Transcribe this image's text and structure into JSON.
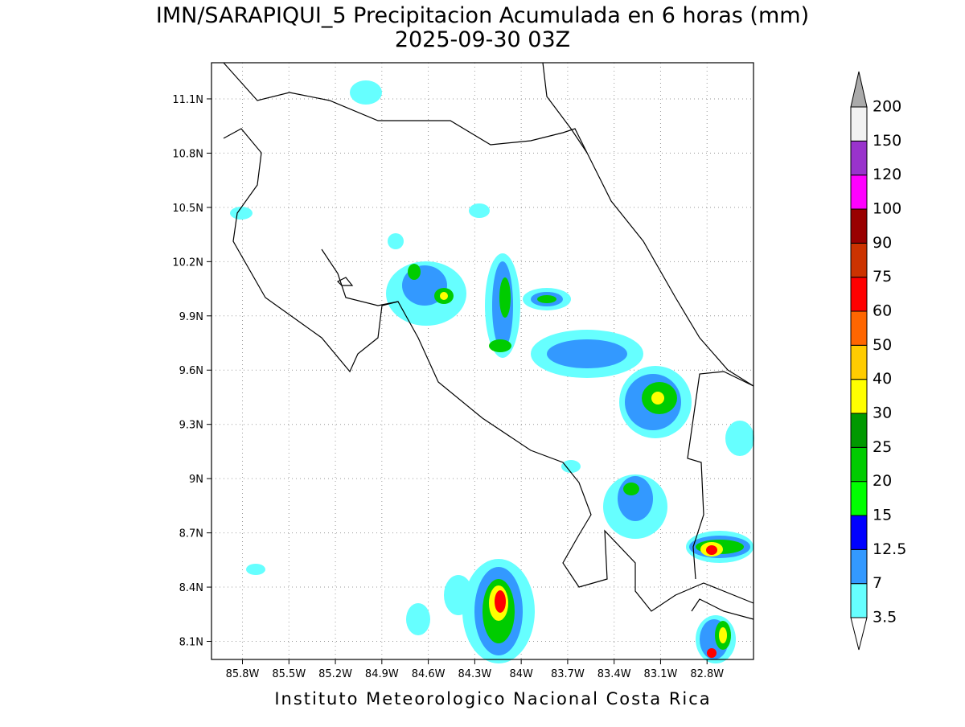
{
  "title": "IMN/SARAPIQUI_5 Precipitacion Acumulada en 6 horas (mm)",
  "subtitle": "2025-09-30 03Z",
  "map": {
    "xlim": [
      -86.0,
      -82.5
    ],
    "ylim": [
      8.0,
      11.3
    ],
    "grid": true,
    "xticks": [
      {
        "value": -85.8,
        "label": "85.8W"
      },
      {
        "value": -85.5,
        "label": "85.5W"
      },
      {
        "value": -85.2,
        "label": "85.2W"
      },
      {
        "value": -84.9,
        "label": "84.9W"
      },
      {
        "value": -84.6,
        "label": "84.6W"
      },
      {
        "value": -84.3,
        "label": "84.3W"
      },
      {
        "value": -84.0,
        "label": "84W"
      },
      {
        "value": -83.7,
        "label": "83.7W"
      },
      {
        "value": -83.4,
        "label": "83.4W"
      },
      {
        "value": -83.1,
        "label": "83.1W"
      },
      {
        "value": -82.8,
        "label": "82.8W"
      }
    ],
    "yticks": [
      {
        "value": 8.1,
        "label": "8.1N"
      },
      {
        "value": 8.4,
        "label": "8.4N"
      },
      {
        "value": 8.7,
        "label": "8.7N"
      },
      {
        "value": 9.0,
        "label": "9N"
      },
      {
        "value": 9.3,
        "label": "9.3N"
      },
      {
        "value": 9.6,
        "label": "9.6N"
      },
      {
        "value": 9.9,
        "label": "9.9N"
      },
      {
        "value": 10.2,
        "label": "10.2N"
      },
      {
        "value": 10.5,
        "label": "10.5N"
      },
      {
        "value": 10.8,
        "label": "10.8N"
      },
      {
        "value": 11.1,
        "label": "11.1N"
      }
    ]
  },
  "colorbar": {
    "levels": [
      3.5,
      7,
      12.5,
      15,
      20,
      25,
      30,
      40,
      50,
      60,
      75,
      90,
      100,
      120,
      150,
      200
    ],
    "colors": [
      "#ffffff",
      "#66ffff",
      "#3399ff",
      "#0000ff",
      "#00ff00",
      "#00cc00",
      "#009900",
      "#ffff00",
      "#ffcc00",
      "#ff6600",
      "#ff0000",
      "#cc3300",
      "#990000",
      "#ff00ff",
      "#9933cc",
      "#f2f2f2",
      "#aaaaaa"
    ]
  },
  "footer": "Instituto Meteorologico Nacional Costa Rica"
}
